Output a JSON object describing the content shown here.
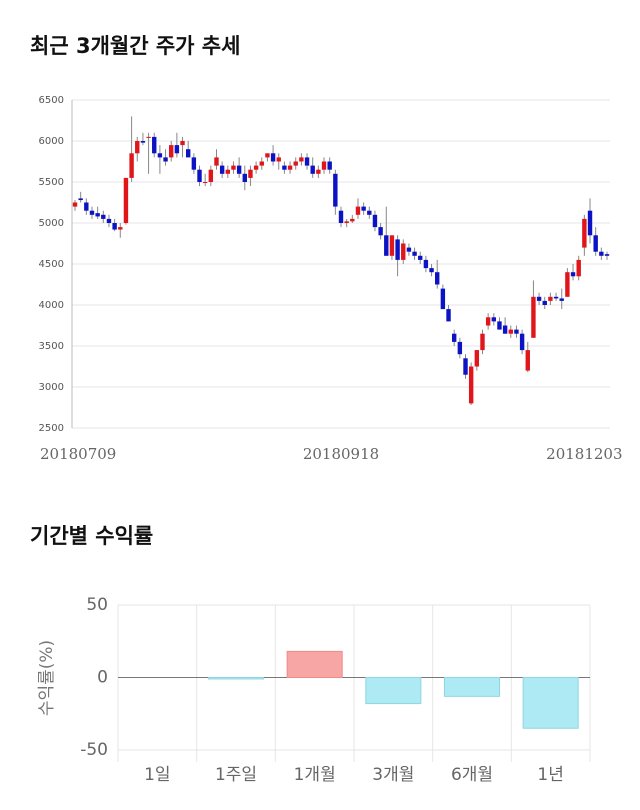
{
  "chart_data": [
    {
      "type": "candlestick",
      "title": "최근 3개월간 주가 추세",
      "categories": [
        "20180709",
        null,
        null,
        null,
        null,
        null,
        null,
        null,
        null,
        null,
        null,
        null,
        null,
        null,
        null,
        null,
        null,
        null,
        null,
        null,
        null,
        null,
        null,
        null,
        null,
        null,
        null,
        null,
        null,
        null,
        null,
        null,
        null,
        null,
        null,
        null,
        null,
        null,
        null,
        null,
        null,
        null,
        null,
        null,
        null,
        null,
        null,
        "20180918",
        null,
        null,
        null,
        null,
        null,
        null,
        null,
        null,
        null,
        null,
        null,
        null,
        null,
        null,
        null,
        null,
        null,
        null,
        null,
        null,
        null,
        null,
        null,
        null,
        null,
        null,
        null,
        null,
        null,
        null,
        null,
        null,
        null,
        null,
        null,
        null,
        null,
        null,
        null,
        null,
        null,
        null,
        "20181203",
        null,
        null,
        null,
        null
      ],
      "ohlc": [
        [
          5200,
          5280,
          5150,
          5250
        ],
        [
          5300,
          5380,
          5250,
          5280
        ],
        [
          5250,
          5300,
          5100,
          5150
        ],
        [
          5150,
          5200,
          5050,
          5100
        ],
        [
          5120,
          5200,
          5050,
          5080
        ],
        [
          5100,
          5150,
          5000,
          5050
        ],
        [
          5050,
          5100,
          4950,
          5000
        ],
        [
          5000,
          5050,
          4900,
          4920
        ],
        [
          4920,
          5000,
          4820,
          4950
        ],
        [
          5000,
          5550,
          4980,
          5550
        ],
        [
          5550,
          6300,
          5500,
          5850
        ],
        [
          5850,
          6050,
          5750,
          6000
        ],
        [
          6000,
          6100,
          5950,
          5980
        ],
        [
          6050,
          6100,
          5600,
          6050
        ],
        [
          6050,
          6100,
          5800,
          5850
        ],
        [
          5850,
          5950,
          5600,
          5800
        ],
        [
          5800,
          5900,
          5700,
          5750
        ],
        [
          5800,
          6000,
          5750,
          5950
        ],
        [
          5950,
          6100,
          5800,
          5850
        ],
        [
          5950,
          6050,
          5800,
          6000
        ],
        [
          5900,
          6000,
          5800,
          5800
        ],
        [
          5800,
          5850,
          5600,
          5650
        ],
        [
          5650,
          5700,
          5450,
          5500
        ],
        [
          5500,
          5600,
          5450,
          5500
        ],
        [
          5500,
          5700,
          5450,
          5650
        ],
        [
          5700,
          5900,
          5650,
          5800
        ],
        [
          5700,
          5750,
          5550,
          5600
        ],
        [
          5600,
          5700,
          5550,
          5650
        ],
        [
          5650,
          5750,
          5600,
          5700
        ],
        [
          5700,
          5800,
          5550,
          5600
        ],
        [
          5600,
          5700,
          5400,
          5500
        ],
        [
          5550,
          5700,
          5450,
          5650
        ],
        [
          5650,
          5750,
          5600,
          5700
        ],
        [
          5700,
          5800,
          5650,
          5750
        ],
        [
          5800,
          5850,
          5750,
          5850
        ],
        [
          5850,
          5950,
          5700,
          5750
        ],
        [
          5750,
          5850,
          5650,
          5800
        ],
        [
          5700,
          5750,
          5600,
          5650
        ],
        [
          5650,
          5750,
          5600,
          5700
        ],
        [
          5700,
          5800,
          5650,
          5750
        ],
        [
          5750,
          5850,
          5700,
          5800
        ],
        [
          5800,
          5850,
          5650,
          5700
        ],
        [
          5700,
          5800,
          5550,
          5600
        ],
        [
          5600,
          5700,
          5550,
          5650
        ],
        [
          5650,
          5800,
          5600,
          5750
        ],
        [
          5750,
          5800,
          5600,
          5650
        ],
        [
          5600,
          5650,
          5100,
          5200
        ],
        [
          5150,
          5200,
          4950,
          5000
        ],
        [
          5000,
          5050,
          4950,
          5020
        ],
        [
          5020,
          5100,
          5000,
          5050
        ],
        [
          5100,
          5300,
          5050,
          5200
        ],
        [
          5200,
          5250,
          5100,
          5150
        ],
        [
          5150,
          5200,
          5050,
          5100
        ],
        [
          5100,
          5150,
          4900,
          4950
        ],
        [
          4950,
          5000,
          4800,
          4850
        ],
        [
          4850,
          5200,
          4600,
          4600
        ],
        [
          4600,
          4850,
          4550,
          4850
        ],
        [
          4800,
          4850,
          4350,
          4550
        ],
        [
          4550,
          4800,
          4500,
          4750
        ],
        [
          4700,
          4750,
          4600,
          4650
        ],
        [
          4650,
          4700,
          4550,
          4600
        ],
        [
          4600,
          4650,
          4500,
          4550
        ],
        [
          4550,
          4600,
          4400,
          4450
        ],
        [
          4450,
          4500,
          4350,
          4400
        ],
        [
          4400,
          4550,
          4200,
          4250
        ],
        [
          4200,
          4250,
          3950,
          3950
        ],
        [
          3950,
          4000,
          3800,
          3800
        ],
        [
          3650,
          3700,
          3500,
          3550
        ],
        [
          3550,
          3600,
          3350,
          3400
        ],
        [
          3350,
          3400,
          3100,
          3150
        ],
        [
          2800,
          3300,
          2780,
          3250
        ],
        [
          3250,
          3450,
          3200,
          3450
        ],
        [
          3450,
          3700,
          3400,
          3650
        ],
        [
          3750,
          3900,
          3700,
          3850
        ],
        [
          3850,
          3900,
          3750,
          3800
        ],
        [
          3800,
          3850,
          3700,
          3700
        ],
        [
          3750,
          3850,
          3650,
          3650
        ],
        [
          3650,
          3750,
          3600,
          3700
        ],
        [
          3700,
          3750,
          3600,
          3650
        ],
        [
          3650,
          3700,
          3400,
          3450
        ],
        [
          3200,
          3550,
          3180,
          3450
        ],
        [
          3600,
          4300,
          3600,
          4100
        ],
        [
          4100,
          4150,
          4000,
          4050
        ],
        [
          4050,
          4100,
          3950,
          4000
        ],
        [
          4050,
          4150,
          4000,
          4100
        ],
        [
          4100,
          4150,
          4050,
          4080
        ],
        [
          4080,
          4200,
          3950,
          4050
        ],
        [
          4100,
          4450,
          4100,
          4400
        ],
        [
          4400,
          4500,
          4300,
          4350
        ],
        [
          4350,
          4600,
          4300,
          4550
        ],
        [
          4700,
          5100,
          4600,
          5050
        ],
        [
          5150,
          5300,
          4750,
          4850
        ],
        [
          4850,
          4950,
          4600,
          4650
        ],
        [
          4650,
          4700,
          4550,
          4600
        ],
        [
          4620,
          4650,
          4550,
          4600
        ]
      ],
      "up_color": "#e0161b",
      "down_color": "#0b13c4",
      "ylim": [
        2500,
        6500
      ],
      "yticks": [
        2500,
        3000,
        3500,
        4000,
        4500,
        5000,
        5500,
        6000,
        6500
      ],
      "grid": true
    },
    {
      "type": "bar",
      "title": "기간별 수익률",
      "ylabel": "수익률(%)",
      "categories": [
        "1일",
        "1주일",
        "1개월",
        "3개월",
        "6개월",
        "1년"
      ],
      "values": [
        0,
        -1,
        18,
        -18,
        -13,
        -35
      ],
      "pos_color": "#f8a5a5",
      "neg_color": "#aeeaf3",
      "ylim": [
        -50,
        50
      ],
      "yticks": [
        -50,
        0,
        50
      ],
      "grid": true
    }
  ]
}
